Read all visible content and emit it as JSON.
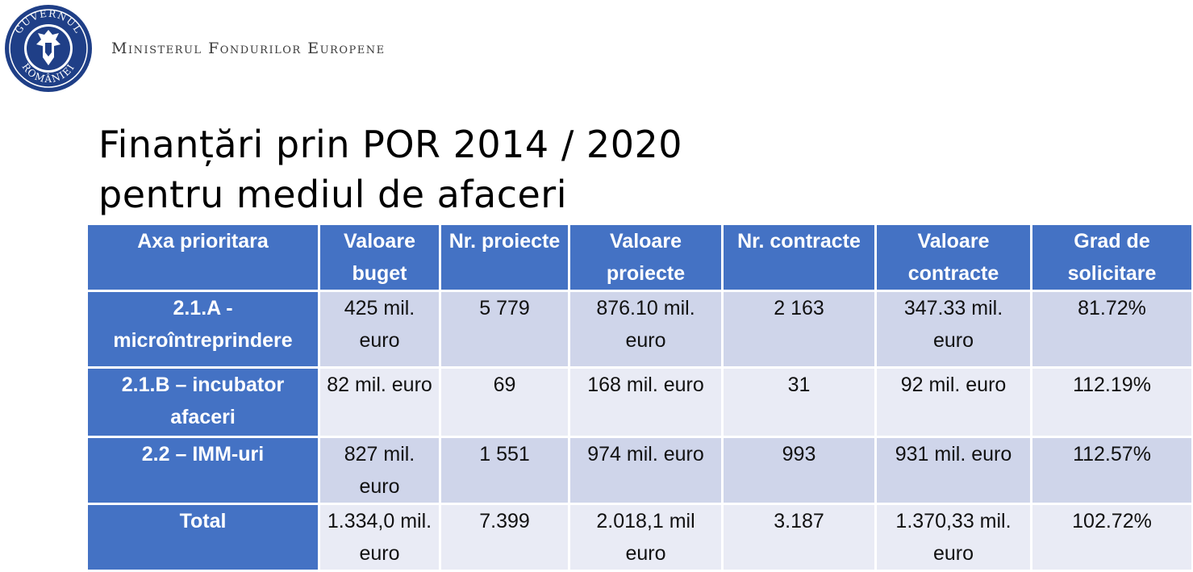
{
  "header": {
    "logo_text_top": "GUVERNUL",
    "logo_text_bottom": "ROMÂNIEI",
    "ministry": "Ministerul Fondurilor Europene"
  },
  "title": {
    "line1": "Finanțări prin POR 2014 / 2020",
    "line2": "pentru mediul de afaceri"
  },
  "table": {
    "headers": [
      "Axa prioritara",
      "Valoare buget",
      "Nr. proiecte",
      "Valoare proiecte",
      "Nr. contracte",
      "Valoare contracte",
      "Grad de solicitare"
    ],
    "rows": [
      [
        "2.1.A - microîntreprindere",
        "425 mil. euro",
        "5 779",
        "876.10 mil. euro",
        "2 163",
        "347.33 mil. euro",
        "81.72%"
      ],
      [
        "2.1.B – incubator afaceri",
        "82 mil. euro",
        "69",
        "168 mil. euro",
        "31",
        "92 mil. euro",
        "112.19%"
      ],
      [
        "2.2 – IMM-uri",
        "827 mil. euro",
        "1 551",
        "974 mil. euro",
        "993",
        "931 mil. euro",
        "112.57%"
      ],
      [
        "Total",
        "1.334,0 mil. euro",
        "7.399",
        "2.018,1 mil euro",
        "3.187",
        "1.370,33 mil. euro",
        "102.72%"
      ]
    ]
  },
  "colors": {
    "header_blue": "#4472c4",
    "row_band_dark": "#cfd5ea",
    "row_band_light": "#e9ebf5",
    "logo_navy": "#1f3f87"
  }
}
